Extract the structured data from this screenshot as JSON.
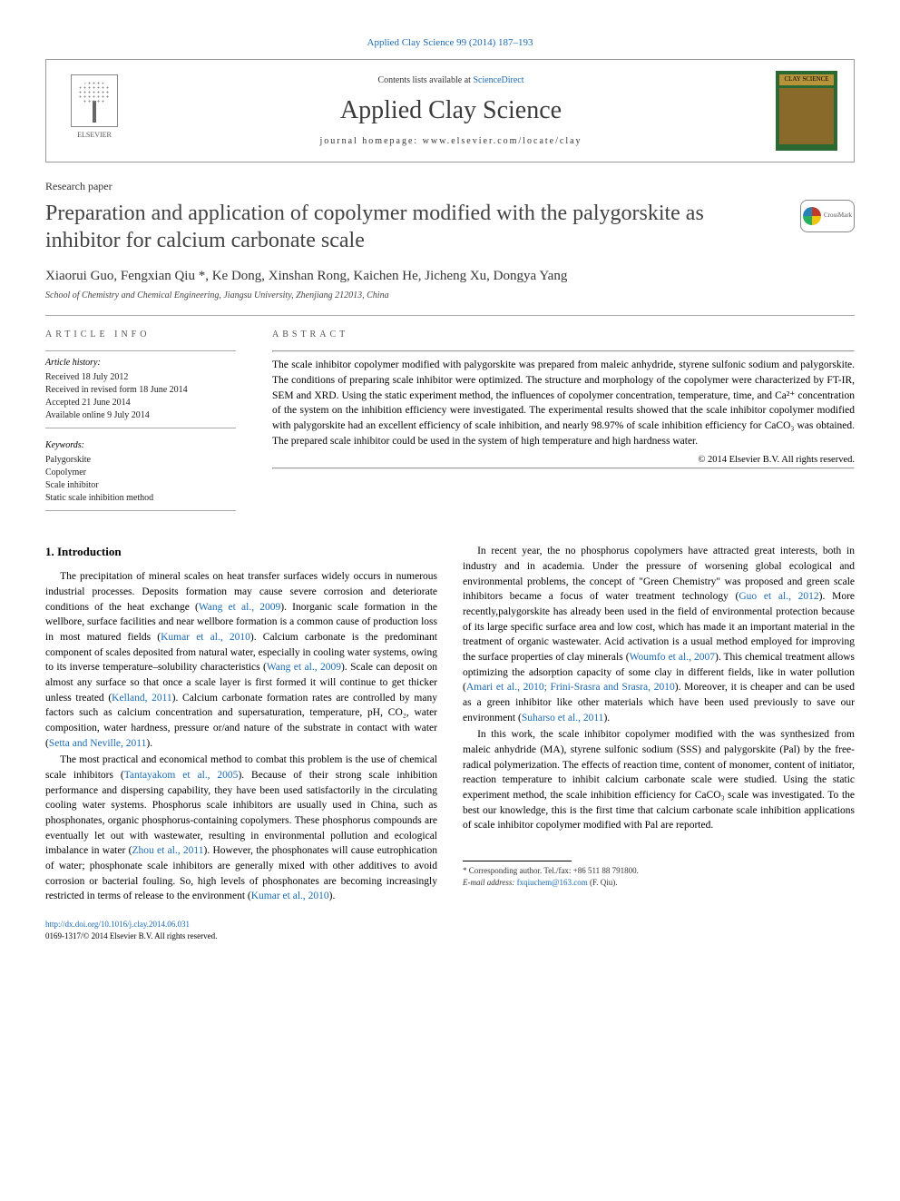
{
  "citation": {
    "journal_link": "Applied Clay Science 99 (2014) 187–193"
  },
  "header": {
    "contents_prefix": "Contents lists available at ",
    "contents_link": "ScienceDirect",
    "journal_name": "Applied Clay Science",
    "homepage_prefix": "journal homepage: ",
    "homepage": "www.elsevier.com/locate/clay",
    "publisher": "ELSEVIER",
    "cover_label": "CLAY SCIENCE"
  },
  "paper": {
    "type": "Research paper",
    "title": "Preparation and application of copolymer modified with the palygorskite as inhibitor for calcium carbonate scale",
    "crossmark": "CrossMark",
    "authors": "Xiaorui Guo, Fengxian Qiu *, Ke Dong, Xinshan Rong, Kaichen He, Jicheng Xu, Dongya Yang",
    "affiliation": "School of Chemistry and Chemical Engineering, Jiangsu University, Zhenjiang 212013, China"
  },
  "article_info": {
    "heading": "ARTICLE INFO",
    "history_label": "Article history:",
    "history": [
      "Received 18 July 2012",
      "Received in revised form 18 June 2014",
      "Accepted 21 June 2014",
      "Available online 9 July 2014"
    ],
    "keywords_label": "Keywords:",
    "keywords": [
      "Palygorskite",
      "Copolymer",
      "Scale inhibitor",
      "Static scale inhibition method"
    ]
  },
  "abstract": {
    "heading": "ABSTRACT",
    "text": "The scale inhibitor copolymer modified with palygorskite was prepared from maleic anhydride, styrene sulfonic sodium and palygorskite. The conditions of preparing scale inhibitor were optimized. The structure and morphology of the copolymer were characterized by FT-IR, SEM and XRD. Using the static experiment method, the influences of copolymer concentration, temperature, time, and Ca²⁺ concentration of the system on the inhibition efficiency were investigated. The experimental results showed that the scale inhibitor copolymer modified with palygorskite had an excellent efficiency of scale inhibition, and nearly 98.97% of scale inhibition efficiency for CaCO₃ was obtained. The prepared scale inhibitor could be used in the system of high temperature and high hardness water.",
    "copyright": "© 2014 Elsevier B.V. All rights reserved."
  },
  "sections": {
    "intro_heading": "1. Introduction",
    "p1a": "The precipitation of mineral scales on heat transfer surfaces widely occurs in numerous industrial processes. Deposits formation may cause severe corrosion and deteriorate conditions of the heat exchange (",
    "p1_ref1": "Wang et al., 2009",
    "p1b": "). Inorganic scale formation in the wellbore, surface facilities and near wellbore formation is a common cause of production loss in most matured fields (",
    "p1_ref2": "Kumar et al., 2010",
    "p1c": "). Calcium carbonate is the predominant component of scales deposited from natural water, especially in cooling water systems, owing to its inverse temperature–solubility characteristics (",
    "p1_ref3": "Wang et al., 2009",
    "p1d": "). Scale can deposit on almost any surface so that once a scale layer is first formed it will continue to get thicker unless treated (",
    "p1_ref4": "Kelland, 2011",
    "p1e": "). Calcium carbonate formation rates are controlled by many factors such as calcium concentration and supersaturation, temperature, pH, CO₂, water composition, water hardness, pressure or/and nature of the substrate in contact with water (",
    "p1_ref5": "Setta and Neville, 2011",
    "p1f": ").",
    "p2a": "The most practical and economical method to combat this problem is the use of chemical scale inhibitors (",
    "p2_ref1": "Tantayakom et al., 2005",
    "p2b": "). Because of their strong scale inhibition performance and dispersing capability, they have been used satisfactorily in the circulating cooling water systems. Phosphorus scale inhibitors are usually used in China, such as phosphonates, organic phosphorus-containing copolymers. These phosphorus compounds are eventually let out with wastewater, resulting in environmental pollution and ecological imbalance in water (",
    "p2_ref2": "Zhou et al., 2011",
    "p2c": "). However, the phosphonates will cause eutrophication of water; phosphonate scale inhibitors are generally mixed with other additives to avoid corrosion or bacterial fouling. So, high levels of phosphonates are becoming increasingly restricted in terms of release to the environment (",
    "p2_ref3": "Kumar et al., 2010",
    "p2d": ").",
    "p3a": "In recent year, the no phosphorus copolymers have attracted great interests, both in industry and in academia. Under the pressure of worsening global ecological and environmental problems, the concept of \"Green Chemistry\" was proposed and green scale inhibitors became a focus of water treatment technology (",
    "p3_ref1": "Guo et al., 2012",
    "p3b": "). More recently,palygorskite has already been used in the field of environmental protection because of its large specific surface area and low cost, which has made it an important material in the treatment of organic wastewater. Acid activation is a usual method employed for improving the surface properties of clay minerals (",
    "p3_ref2": "Woumfo et al., 2007",
    "p3c": "). This chemical treatment allows optimizing the adsorption capacity of some clay in different fields, like in water pollution (",
    "p3_ref3": "Amari et al., 2010; Frini-Srasra and Srasra, 2010",
    "p3d": "). Moreover, it is cheaper and can be used as a green inhibitor like other materials which have been used previously to save our environment (",
    "p3_ref4": "Suharso et al., 2011",
    "p3e": ").",
    "p4": "In this work, the scale inhibitor copolymer modified with the was synthesized from maleic anhydride (MA), styrene sulfonic sodium (SSS) and palygorskite (Pal) by the free-radical polymerization. The effects of reaction time, content of monomer, content of initiator, reaction temperature to inhibit calcium carbonate scale were studied. Using the static experiment method, the scale inhibition efficiency for CaCO₃ scale was investigated. To the best our knowledge, this is the first time that calcium carbonate scale inhibition applications of scale inhibitor copolymer modified with Pal are reported."
  },
  "footnote": {
    "corr_label": "* Corresponding author. Tel./fax: +86 511 88 791800.",
    "email_label": "E-mail address: ",
    "email": "fxqiuchem@163.com",
    "email_suffix": " (F. Qiu)."
  },
  "doi": {
    "link": "http://dx.doi.org/10.1016/j.clay.2014.06.031",
    "issn": "0169-1317/© 2014 Elsevier B.V. All rights reserved."
  },
  "colors": {
    "link": "#1b6ab3",
    "text": "#000000",
    "heading": "#434343",
    "rule": "#aaaaaa"
  }
}
